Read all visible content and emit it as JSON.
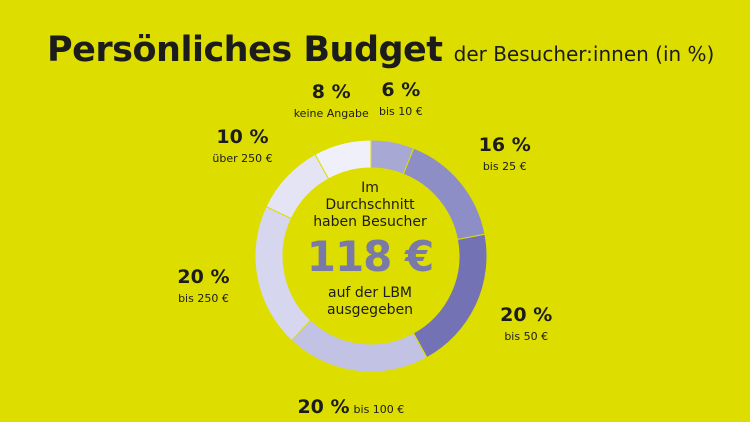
{
  "title": "Persönliches Budget",
  "subtitle": "der Besucher:innen (in %)",
  "center": {
    "line1": "Im",
    "line2": "Durchschnitt",
    "line3": "haben Besucher",
    "value": "118 €",
    "line4": "auf der LBM",
    "line5": "ausgegeben"
  },
  "chart_data": {
    "type": "pie",
    "title": "Persönliches Budget",
    "subtitle": "der Besucher:innen (in %)",
    "unit": "%",
    "slices": [
      {
        "label": "bis 10 €",
        "value": 6,
        "display": "6 %",
        "color": "#a8a8d4"
      },
      {
        "label": "bis 25 €",
        "value": 16,
        "display": "16 %",
        "color": "#8e8ec6"
      },
      {
        "label": "bis 50 €",
        "value": 20,
        "display": "20 %",
        "color": "#7272b4"
      },
      {
        "label": "bis 100 €",
        "value": 20,
        "display": "20 %",
        "color": "#c2c2e4"
      },
      {
        "label": "bis 250 €",
        "value": 20,
        "display": "20 %",
        "color": "#d6d6ee"
      },
      {
        "label": "über 250 €",
        "value": 10,
        "display": "10 %",
        "color": "#e4e4f4"
      },
      {
        "label": "keine Angabe",
        "value": 8,
        "display": "8 %",
        "color": "#f0f0fa"
      }
    ]
  }
}
